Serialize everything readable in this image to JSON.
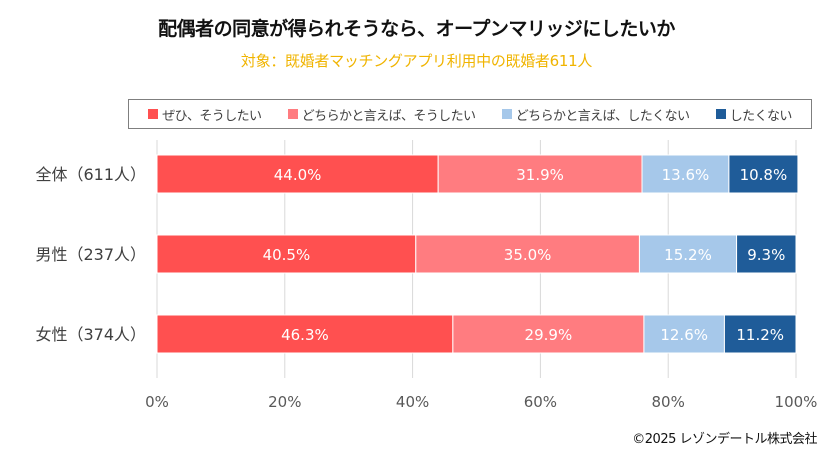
{
  "chart_data": {
    "type": "bar",
    "orientation": "horizontal",
    "stacked": true,
    "title": "配偶者の同意が得られそうなら、オープンマリッジにしたいか",
    "subtitle": "対象：既婚者マッチングアプリ利用中の既婚者611人",
    "categories": [
      "全体（611人）",
      "男性（237人）",
      "女性（374人）"
    ],
    "series": [
      {
        "name": "ぜひ、そうしたい",
        "color": "#ff5050",
        "values": [
          44.0,
          40.5,
          46.3
        ]
      },
      {
        "name": "どちらかと言えば、そうしたい",
        "color": "#ff7c80",
        "values": [
          31.9,
          35.0,
          29.9
        ]
      },
      {
        "name": "どちらかと言えば、したくない",
        "color": "#a6c8ea",
        "values": [
          13.6,
          15.2,
          12.6
        ]
      },
      {
        "name": "したくない",
        "color": "#1f5c99",
        "values": [
          10.8,
          9.3,
          11.2
        ]
      }
    ],
    "xlim": [
      0,
      100
    ],
    "xticks": [
      "0%",
      "20%",
      "40%",
      "60%",
      "80%",
      "100%"
    ],
    "xlabel": "",
    "ylabel": "",
    "grid": true,
    "legend_position": "top"
  },
  "credit": "©2025 レゾンデートル株式会社"
}
